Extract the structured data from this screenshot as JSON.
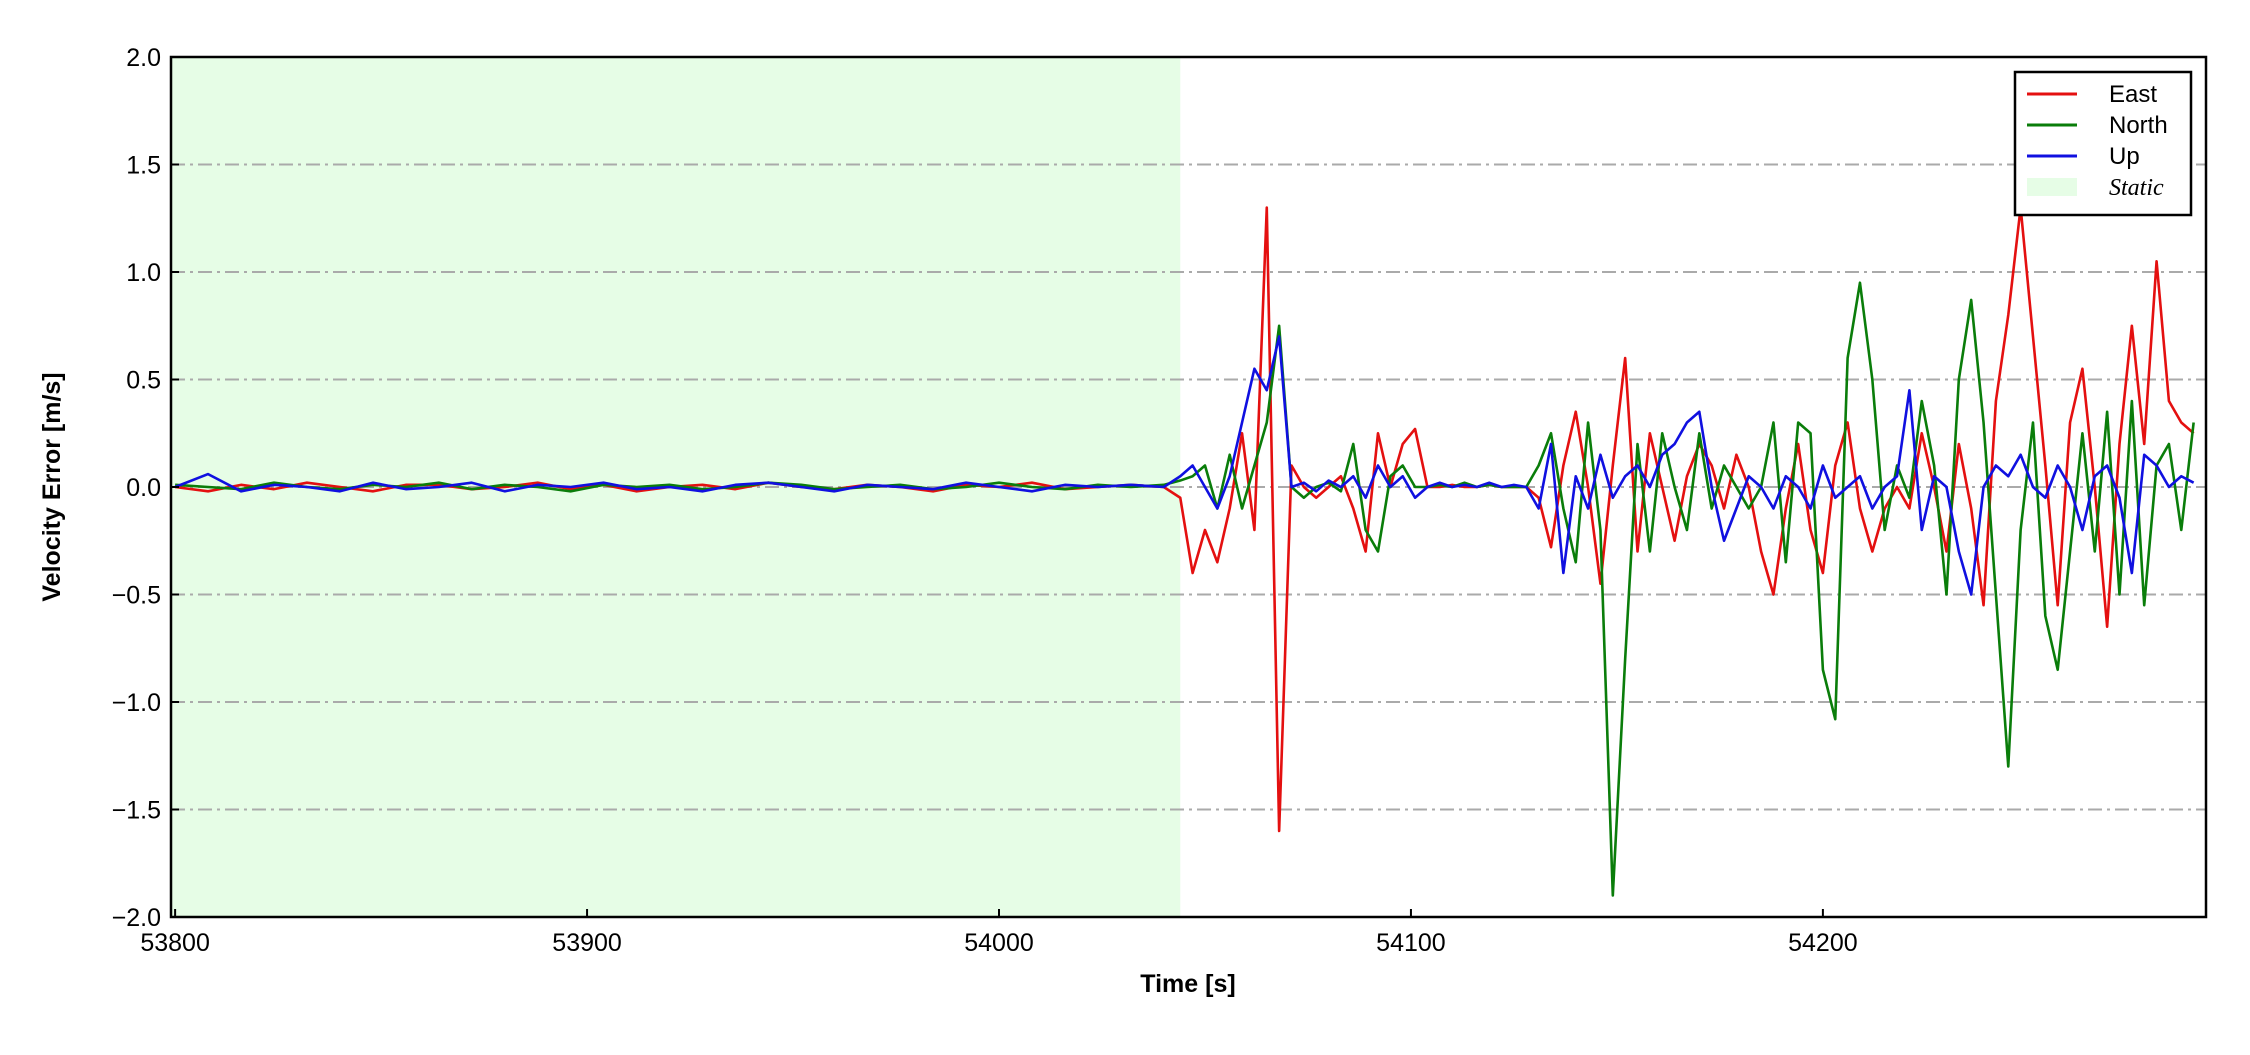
{
  "chart_data": {
    "type": "line",
    "x_label": "Time [s]",
    "y_label": "Velocity Error [m/s]",
    "xlim": [
      53799,
      54293
    ],
    "ylim": [
      -2,
      2
    ],
    "xticks": [
      53800,
      53900,
      54000,
      54100,
      54200
    ],
    "yticks": [
      {
        "value": -2,
        "label": "−2.0"
      },
      {
        "value": -1.5,
        "label": "−1.5"
      },
      {
        "value": -1,
        "label": "−1.0"
      },
      {
        "value": -0.5,
        "label": "−0.5"
      },
      {
        "value": 0,
        "label": "0.0"
      },
      {
        "value": 0.5,
        "label": "0.5"
      },
      {
        "value": 1,
        "label": "1.0"
      },
      {
        "value": 1.5,
        "label": "1.5"
      },
      {
        "value": 2,
        "label": "2.0"
      }
    ],
    "grid": true,
    "legend": "upper right",
    "shade": {
      "label": "Static",
      "color": "#e6fde6",
      "x": [
        53799,
        54044
      ]
    },
    "x": [
      53800,
      53808,
      53816,
      53824,
      53832,
      53840,
      53848,
      53856,
      53864,
      53872,
      53880,
      53888,
      53896,
      53904,
      53912,
      53920,
      53928,
      53936,
      53944,
      53952,
      53960,
      53968,
      53976,
      53984,
      53992,
      54000,
      54008,
      54016,
      54024,
      54032,
      54040,
      54044,
      54047,
      54050,
      54053,
      54056,
      54059,
      54062,
      54065,
      54068,
      54071,
      54074,
      54077,
      54080,
      54083,
      54086,
      54089,
      54092,
      54095,
      54098,
      54101,
      54104,
      54107,
      54110,
      54113,
      54116,
      54119,
      54122,
      54125,
      54128,
      54131,
      54134,
      54137,
      54140,
      54143,
      54146,
      54149,
      54152,
      54155,
      54158,
      54161,
      54164,
      54167,
      54170,
      54173,
      54176,
      54179,
      54182,
      54185,
      54188,
      54191,
      54194,
      54197,
      54200,
      54203,
      54206,
      54209,
      54212,
      54215,
      54218,
      54221,
      54224,
      54227,
      54230,
      54233,
      54236,
      54239,
      54242,
      54245,
      54248,
      54251,
      54254,
      54257,
      54260,
      54263,
      54266,
      54269,
      54272,
      54275,
      54278,
      54281,
      54284,
      54287,
      54290
    ],
    "series": [
      {
        "name": "East",
        "color": "#e41010",
        "values": [
          0,
          -0.02,
          0.01,
          -0.01,
          0.02,
          0,
          -0.02,
          0.01,
          0.01,
          -0.01,
          0,
          0.02,
          -0.01,
          0.01,
          -0.02,
          0,
          0.01,
          -0.01,
          0.02,
          0,
          -0.01,
          0.01,
          0,
          -0.02,
          0.01,
          0,
          0.02,
          -0.01,
          0,
          0.01,
          0,
          -0.05,
          -0.4,
          -0.2,
          -0.35,
          -0.1,
          0.25,
          -0.2,
          1.3,
          -1.6,
          0.1,
          0,
          -0.05,
          0,
          0.05,
          -0.1,
          -0.3,
          0.25,
          0,
          0.2,
          0.27,
          0,
          0,
          0.01,
          0,
          0,
          0.01,
          0,
          0,
          0,
          -0.05,
          -0.28,
          0.1,
          0.35,
          0,
          -0.45,
          0.1,
          0.6,
          -0.3,
          0.25,
          0,
          -0.25,
          0.05,
          0.2,
          0.1,
          -0.1,
          0.15,
          0,
          -0.3,
          -0.5,
          -0.1,
          0.2,
          -0.2,
          -0.4,
          0.1,
          0.3,
          -0.1,
          -0.3,
          -0.1,
          0,
          -0.1,
          0.25,
          0,
          -0.3,
          0.2,
          -0.1,
          -0.55,
          0.4,
          0.8,
          1.3,
          0.7,
          0.1,
          -0.55,
          0.3,
          0.55,
          0,
          -0.65,
          0.2,
          0.75,
          0.2,
          1.05,
          0.4,
          0.3,
          0.25
        ]
      },
      {
        "name": "North",
        "color": "#0a7d0a",
        "values": [
          0.01,
          0,
          -0.01,
          0.02,
          0,
          -0.01,
          0.01,
          0,
          0.02,
          -0.01,
          0.01,
          0,
          -0.02,
          0.01,
          0,
          0.01,
          -0.01,
          0,
          0.02,
          0.01,
          -0.01,
          0,
          0.01,
          -0.01,
          0,
          0.02,
          0,
          -0.01,
          0.01,
          0,
          0.01,
          0.03,
          0.05,
          0.1,
          -0.1,
          0.15,
          -0.1,
          0.1,
          0.3,
          0.75,
          0,
          -0.05,
          0,
          0.02,
          -0.02,
          0.2,
          -0.2,
          -0.3,
          0.05,
          0.1,
          0,
          0,
          0.01,
          0,
          0.02,
          0,
          0.01,
          0,
          0,
          0,
          0.1,
          0.25,
          -0.1,
          -0.35,
          0.3,
          -0.2,
          -1.9,
          -0.8,
          0.2,
          -0.3,
          0.25,
          0,
          -0.2,
          0.25,
          -0.1,
          0.1,
          0,
          -0.1,
          0,
          0.3,
          -0.35,
          0.3,
          0.25,
          -0.85,
          -1.08,
          0.6,
          0.95,
          0.5,
          -0.2,
          0.1,
          -0.05,
          0.4,
          0.1,
          -0.5,
          0.5,
          0.87,
          0.3,
          -0.5,
          -1.3,
          -0.2,
          0.3,
          -0.6,
          -0.85,
          -0.3,
          0.25,
          -0.3,
          0.35,
          -0.5,
          0.4,
          -0.55,
          0.1,
          0.2,
          -0.2,
          0.3
        ]
      },
      {
        "name": "Up",
        "color": "#1010e0",
        "values": [
          0,
          0.06,
          -0.02,
          0.01,
          0,
          -0.02,
          0.02,
          -0.01,
          0,
          0.02,
          -0.02,
          0.01,
          0,
          0.02,
          -0.01,
          0,
          -0.02,
          0.01,
          0.02,
          0,
          -0.02,
          0.01,
          0,
          -0.01,
          0.02,
          0,
          -0.02,
          0.01,
          0,
          0.01,
          0,
          0.05,
          0.1,
          0,
          -0.1,
          0.05,
          0.3,
          0.55,
          0.45,
          0.7,
          0,
          0.02,
          -0.02,
          0.03,
          0,
          0.05,
          -0.05,
          0.1,
          0,
          0.05,
          -0.05,
          0,
          0.02,
          0,
          0.01,
          0,
          0.02,
          0,
          0.01,
          0,
          -0.1,
          0.2,
          -0.4,
          0.05,
          -0.1,
          0.15,
          -0.05,
          0.05,
          0.1,
          0,
          0.15,
          0.2,
          0.3,
          0.35,
          0,
          -0.25,
          -0.1,
          0.05,
          0,
          -0.1,
          0.05,
          0,
          -0.1,
          0.1,
          -0.05,
          0,
          0.05,
          -0.1,
          0,
          0.05,
          0.45,
          -0.2,
          0.05,
          0,
          -0.3,
          -0.5,
          0,
          0.1,
          0.05,
          0.15,
          0,
          -0.05,
          0.1,
          0,
          -0.2,
          0.05,
          0.1,
          -0.05,
          -0.4,
          0.15,
          0.1,
          0,
          0.05,
          0.02
        ]
      }
    ]
  }
}
